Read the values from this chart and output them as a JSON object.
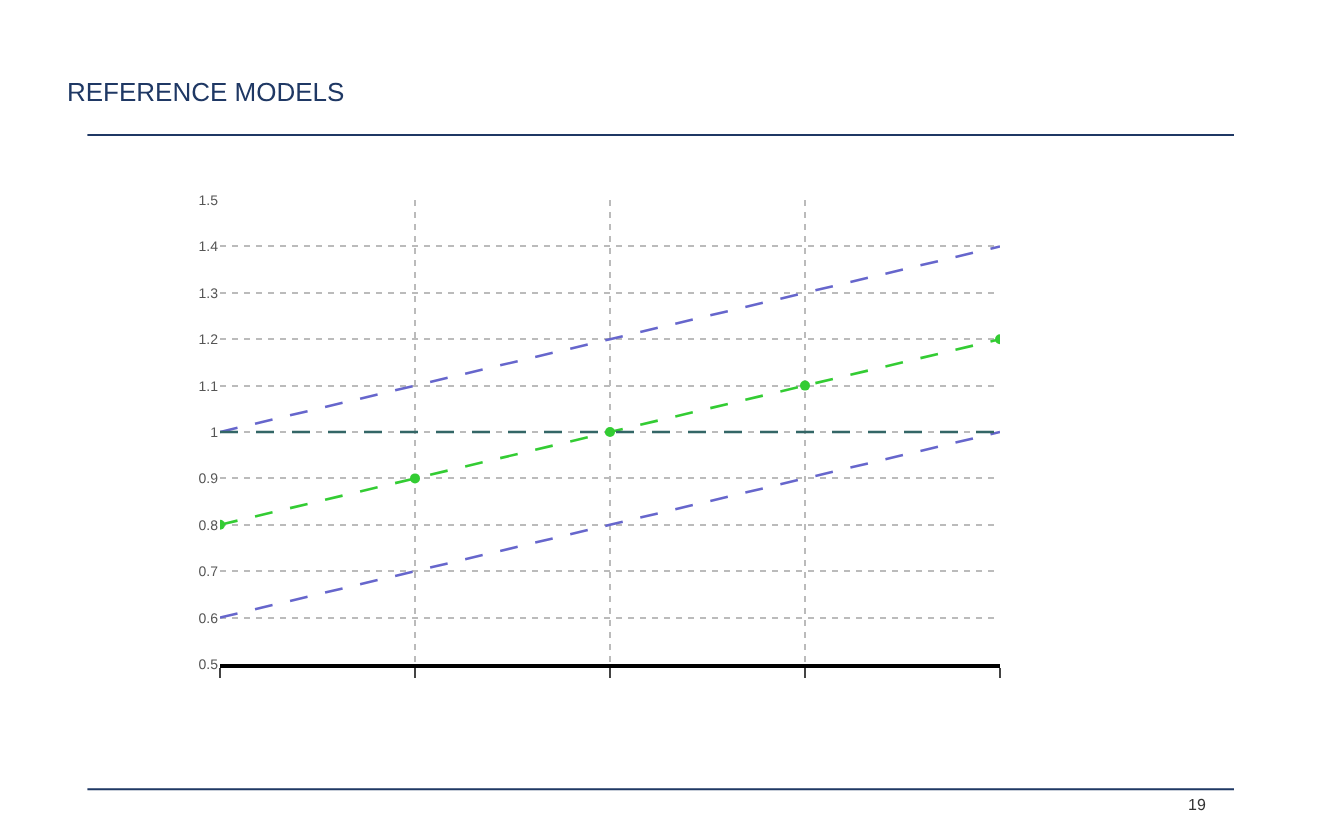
{
  "chart_data": {
    "type": "line",
    "title": "REFERENCE MODELS",
    "annotations": [
      "19"
    ],
    "categories": [
      null,
      null,
      null,
      null,
      null
    ],
    "series": [
      {
        "color": "#6666cc",
        "values": [
          1.0,
          1.1,
          1.2,
          1.3,
          1.4
        ],
        "line_style": "dashed",
        "marker": "none"
      },
      {
        "color": "#33cc33",
        "values": [
          0.8,
          0.9,
          1.0,
          1.1,
          1.2
        ],
        "line_style": "dashed",
        "marker": "circle"
      },
      {
        "color": "#6666cc",
        "values": [
          0.6,
          0.7,
          0.8,
          0.9,
          1.0
        ],
        "line_style": "dashed",
        "marker": "none"
      },
      {
        "color": "#336666",
        "values": [
          1.0,
          1.0,
          1.0,
          1.0,
          1.0
        ],
        "line_style": "dashed",
        "marker": "none"
      }
    ],
    "ylim": [
      0.5,
      1.5
    ],
    "yticks": [
      0.5,
      0.6,
      0.7,
      0.8,
      0.9,
      1,
      1.1,
      1.2,
      1.3,
      1.4,
      1.5
    ],
    "grid": true,
    "tick_labels": "y",
    "legend": false
  }
}
